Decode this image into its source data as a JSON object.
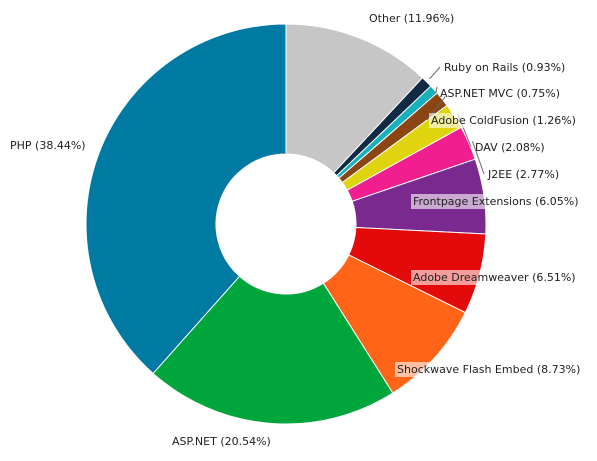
{
  "chart_data": {
    "type": "pie",
    "variant": "donut",
    "slices": [
      {
        "label": "Other (11.96%)",
        "name": "Other",
        "value": 11.96,
        "color": "#c6c6c6"
      },
      {
        "label": "Ruby on Rails (0.93%)",
        "name": "Ruby on Rails",
        "value": 0.93,
        "color": "#0f2a44"
      },
      {
        "label": "ASP.NET MVC (0.75%)",
        "name": "ASP.NET MVC",
        "value": 0.75,
        "color": "#16b1bb"
      },
      {
        "label": "Adobe ColdFusion (1.26%)",
        "name": "Adobe ColdFusion",
        "value": 1.26,
        "color": "#8b4513"
      },
      {
        "label": "DAV (2.08%)",
        "name": "DAV",
        "value": 2.08,
        "color": "#e0d410"
      },
      {
        "label": "J2EE (2.77%)",
        "name": "J2EE",
        "value": 2.77,
        "color": "#f01e8f"
      },
      {
        "label": "Frontpage Extensions (6.05%)",
        "name": "Frontpage Extensions",
        "value": 6.05,
        "color": "#7a2a8f"
      },
      {
        "label": "Adobe Dreamweaver (6.51%)",
        "name": "Adobe Dreamweaver",
        "value": 6.51,
        "color": "#e20a0a"
      },
      {
        "label": "Shockwave Flash Embed (8.73%)",
        "name": "Shockwave Flash Embed",
        "value": 8.73,
        "color": "#ff6419"
      },
      {
        "label": "ASP.NET (20.54%)",
        "name": "ASP.NET",
        "value": 20.54,
        "color": "#00a63c"
      },
      {
        "label": "PHP (38.44%)",
        "name": "PHP",
        "value": 38.44,
        "color": "#0079a3"
      }
    ]
  }
}
